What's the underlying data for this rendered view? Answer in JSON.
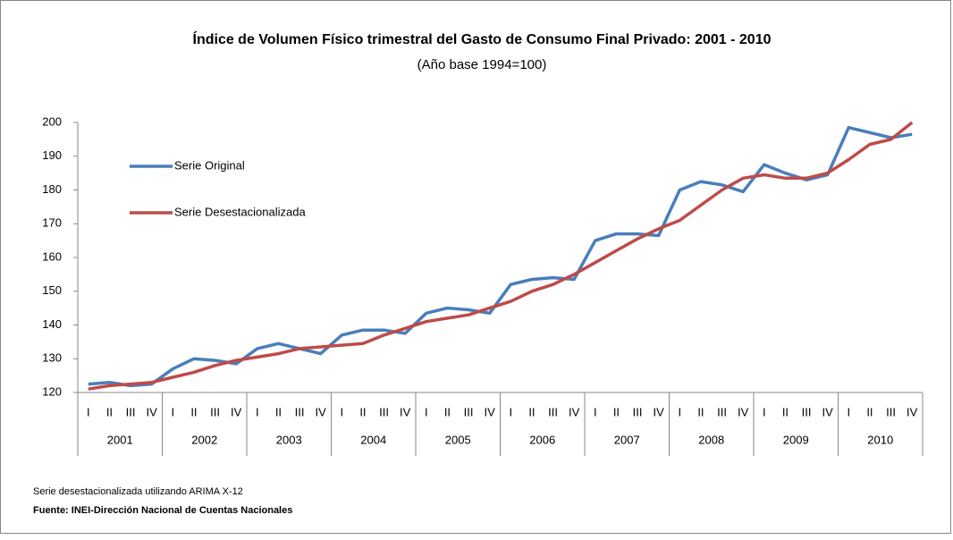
{
  "chart_data": {
    "type": "line",
    "title": "Índice de Volumen Físico trimestral del Gasto de Consumo Final Privado: 2001 - 2010",
    "subtitle": "(Año base 1994=100)",
    "categories": [
      "I",
      "II",
      "III",
      "IV",
      "I",
      "II",
      "III",
      "IV",
      "I",
      "II",
      "III",
      "IV",
      "I",
      "II",
      "III",
      "IV",
      "I",
      "II",
      "III",
      "IV",
      "I",
      "II",
      "III",
      "IV",
      "I",
      "II",
      "III",
      "IV",
      "I",
      "II",
      "III",
      "IV",
      "I",
      "II",
      "III",
      "IV",
      "I",
      "II",
      "III",
      "IV"
    ],
    "groups": [
      "2001",
      "2002",
      "2003",
      "2004",
      "2005",
      "2006",
      "2007",
      "2008",
      "2009",
      "2010"
    ],
    "series": [
      {
        "name": "Serie Original",
        "color": "#4a7ebb",
        "values": [
          122.5,
          123,
          122,
          122.5,
          127,
          130,
          129.5,
          128.5,
          133,
          134.5,
          133,
          131.5,
          137,
          138.5,
          138.5,
          137.5,
          143.5,
          145,
          144.5,
          143.5,
          152,
          153.5,
          154,
          153.5,
          165,
          167,
          167,
          166.5,
          180,
          182.5,
          181.5,
          179.5,
          187.5,
          185,
          183,
          184.5,
          198.5,
          197,
          195.5,
          196.5
        ]
      },
      {
        "name": "Serie Desestacionalizada",
        "color": "#be4b48",
        "values": [
          121,
          122,
          122.5,
          123,
          124.5,
          126,
          128,
          129.5,
          130.5,
          131.5,
          133,
          133.5,
          134,
          134.5,
          137,
          139,
          141,
          142,
          143,
          145,
          147,
          150,
          152,
          155,
          158.5,
          162,
          165.5,
          168.5,
          171,
          175.5,
          180,
          183.5,
          184.5,
          183.5,
          183.5,
          185,
          189,
          193.5,
          195,
          200
        ]
      }
    ],
    "ylim": [
      120,
      200
    ],
    "yticks": [
      120,
      130,
      140,
      150,
      160,
      170,
      180,
      190,
      200
    ],
    "notes": [
      "Serie desestacionalizada utilizando ARIMA X-12",
      "Fuente: INEI-Dirección Nacional de Cuentas Nacionales"
    ]
  }
}
